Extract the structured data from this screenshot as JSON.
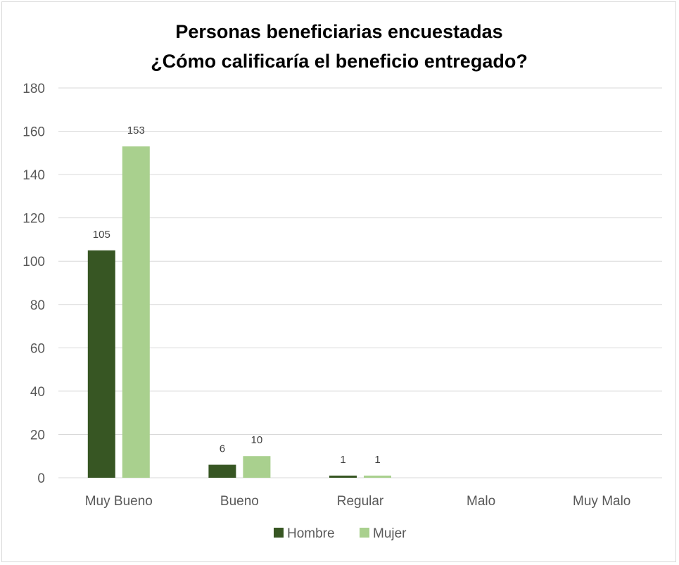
{
  "chart_data": {
    "type": "bar",
    "title": "Personas beneficiarias encuestadas",
    "subtitle": "¿Cómo calificaría el beneficio entregado?",
    "categories": [
      "Muy Bueno",
      "Bueno",
      "Regular",
      "Malo",
      "Muy Malo"
    ],
    "series": [
      {
        "name": "Hombre",
        "values": [
          105,
          6,
          1,
          null,
          null
        ],
        "color": "#375623"
      },
      {
        "name": "Mujer",
        "values": [
          153,
          10,
          1,
          null,
          null
        ],
        "color": "#a9d08e"
      }
    ],
    "yticks": [
      "0",
      "20",
      "40",
      "60",
      "80",
      "100",
      "120",
      "140",
      "160",
      "180"
    ],
    "ylim": [
      0,
      180
    ],
    "ystep": 20,
    "grid": true,
    "legend": "bottom",
    "colors": {
      "gridline": "#d9d9d9",
      "text": "#595959",
      "label": "#404040",
      "border": "#d9d9d9"
    }
  }
}
